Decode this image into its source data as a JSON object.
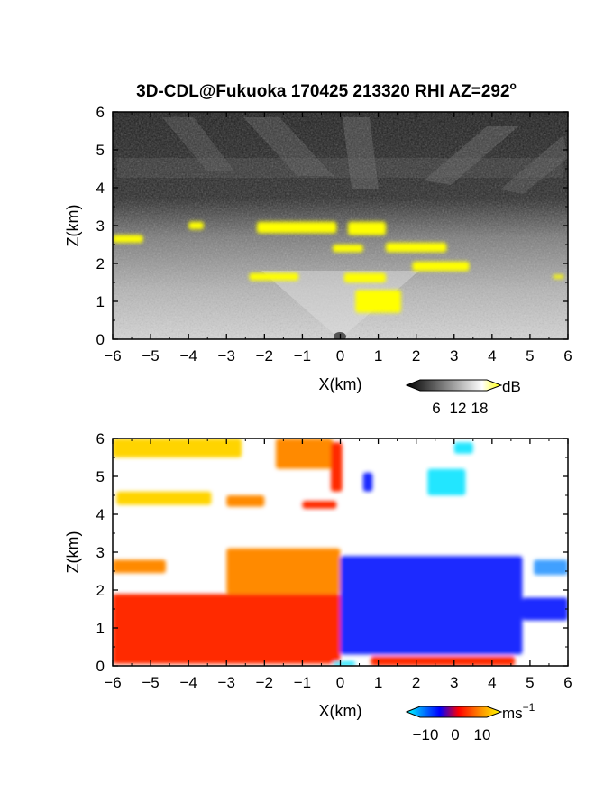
{
  "title": {
    "text": "3D-CDL@Fukuoka 170425 213320 RHI AZ=292",
    "superscript": "o"
  },
  "chart_data": [
    {
      "name": "reflectivity-panel",
      "type": "heatmap",
      "xlabel": "X(km)",
      "ylabel": "Z(km)",
      "xlim": [
        -6,
        6
      ],
      "ylim": [
        0,
        6
      ],
      "xticks": [
        -6,
        -5,
        -4,
        -3,
        -2,
        -1,
        0,
        1,
        2,
        3,
        4,
        5,
        6
      ],
      "yticks": [
        0,
        1,
        2,
        3,
        4,
        5,
        6
      ],
      "colorbar": {
        "unit": "dB",
        "ticks": [
          6,
          12,
          18
        ],
        "colors": [
          "#000000",
          "#ffffff",
          "#ffff00"
        ]
      },
      "features": [
        {
          "kind": "yellow-echo",
          "x": [
            -6.0,
            -5.2
          ],
          "z": [
            2.55,
            2.75
          ]
        },
        {
          "kind": "yellow-echo",
          "x": [
            -4.0,
            -3.6
          ],
          "z": [
            2.9,
            3.1
          ]
        },
        {
          "kind": "yellow-echo",
          "x": [
            -2.2,
            -0.1
          ],
          "z": [
            2.8,
            3.1
          ]
        },
        {
          "kind": "yellow-echo",
          "x": [
            0.2,
            1.2
          ],
          "z": [
            2.75,
            3.1
          ]
        },
        {
          "kind": "yellow-echo",
          "x": [
            -0.2,
            0.6
          ],
          "z": [
            2.3,
            2.5
          ]
        },
        {
          "kind": "yellow-echo",
          "x": [
            1.2,
            2.8
          ],
          "z": [
            2.3,
            2.55
          ]
        },
        {
          "kind": "yellow-echo",
          "x": [
            1.9,
            3.4
          ],
          "z": [
            1.8,
            2.05
          ]
        },
        {
          "kind": "yellow-echo",
          "x": [
            -2.4,
            -1.1
          ],
          "z": [
            1.55,
            1.75
          ]
        },
        {
          "kind": "yellow-echo",
          "x": [
            0.1,
            1.2
          ],
          "z": [
            1.5,
            1.75
          ]
        },
        {
          "kind": "yellow-echo",
          "x": [
            0.4,
            1.6
          ],
          "z": [
            0.7,
            1.3
          ]
        },
        {
          "kind": "yellow-echo",
          "x": [
            5.6,
            5.9
          ],
          "z": [
            1.6,
            1.7
          ]
        }
      ]
    },
    {
      "name": "velocity-panel",
      "type": "heatmap",
      "xlabel": "X(km)",
      "ylabel": "Z(km)",
      "xlim": [
        -6,
        6
      ],
      "ylim": [
        0,
        6
      ],
      "xticks": [
        -6,
        -5,
        -4,
        -3,
        -2,
        -1,
        0,
        1,
        2,
        3,
        4,
        5,
        6
      ],
      "yticks": [
        0,
        1,
        2,
        3,
        4,
        5,
        6
      ],
      "colorbar": {
        "unit": "ms",
        "unit_superscript": "−1",
        "ticks": [
          "−10",
          "0",
          "10"
        ],
        "colors": [
          "#00ffff",
          "#0000ff",
          "#ff0000",
          "#ffff00"
        ]
      },
      "features": [
        {
          "kind": "red",
          "x": [
            -6.0,
            0.0
          ],
          "z": [
            0.05,
            1.9
          ]
        },
        {
          "kind": "orange",
          "x": [
            -3.0,
            0.0
          ],
          "z": [
            1.9,
            3.1
          ]
        },
        {
          "kind": "orange",
          "x": [
            -6.0,
            -4.6
          ],
          "z": [
            2.45,
            2.8
          ]
        },
        {
          "kind": "blue",
          "x": [
            0.0,
            4.8
          ],
          "z": [
            0.3,
            2.9
          ]
        },
        {
          "kind": "blue",
          "x": [
            4.8,
            6.0
          ],
          "z": [
            1.2,
            1.8
          ]
        },
        {
          "kind": "light-blue",
          "x": [
            5.1,
            6.0
          ],
          "z": [
            2.4,
            2.8
          ]
        },
        {
          "kind": "yellow",
          "x": [
            -6.0,
            -2.6
          ],
          "z": [
            5.5,
            6.0
          ]
        },
        {
          "kind": "yellow",
          "x": [
            -5.9,
            -3.4
          ],
          "z": [
            4.25,
            4.6
          ]
        },
        {
          "kind": "orange",
          "x": [
            -3.0,
            -2.0
          ],
          "z": [
            4.2,
            4.5
          ]
        },
        {
          "kind": "orange",
          "x": [
            -1.7,
            -0.2
          ],
          "z": [
            5.2,
            6.0
          ]
        },
        {
          "kind": "red",
          "x": [
            -1.0,
            -0.1
          ],
          "z": [
            4.15,
            4.35
          ]
        },
        {
          "kind": "red",
          "x": [
            -0.25,
            0.05
          ],
          "z": [
            4.6,
            5.9
          ]
        },
        {
          "kind": "blue",
          "x": [
            0.6,
            0.85
          ],
          "z": [
            4.6,
            5.1
          ]
        },
        {
          "kind": "cyan",
          "x": [
            2.3,
            3.3
          ],
          "z": [
            4.5,
            5.2
          ]
        },
        {
          "kind": "cyan",
          "x": [
            3.0,
            3.5
          ],
          "z": [
            5.6,
            5.9
          ]
        },
        {
          "kind": "red",
          "x": [
            0.8,
            4.6
          ],
          "z": [
            0.0,
            0.25
          ]
        },
        {
          "kind": "cyan",
          "x": [
            -0.2,
            0.4
          ],
          "z": [
            0.0,
            0.12
          ]
        }
      ]
    }
  ]
}
